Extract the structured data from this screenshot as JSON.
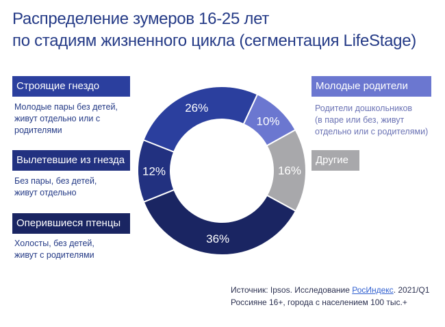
{
  "title_line1": "Распределение зумеров 16-25 лет",
  "title_line2": "по стадиям жизненного цикла (сегментация LifeStage)",
  "segments": {
    "nest_building": {
      "label": "Строящие гнездо",
      "desc_line1": "Молодые пары без детей,",
      "desc_line2": "живут отдельно или с",
      "desc_line3": "родителями"
    },
    "left_nest": {
      "label": "Вылетевшие из гнезда",
      "desc_line1": "Без пары, без детей,",
      "desc_line2": "живут отдельно"
    },
    "fledglings": {
      "label": "Оперившиеся птенцы",
      "desc_line1": "Холосты, без детей,",
      "desc_line2": "живут с родителями"
    },
    "young_parents": {
      "label": "Молодые родители",
      "desc_line1": "Родители дошкольников",
      "desc_line2": "(в паре или без, живут",
      "desc_line3": "отдельно или с родителями)"
    },
    "other": {
      "label": "Другие"
    }
  },
  "source": {
    "prefix": "Источник: Ipsos. Исследование ",
    "link": "РосИндекс",
    "suffix": ". 2021/Q1",
    "line2": "Россияне 16+, города с населением 100 тыс.+"
  },
  "colors": {
    "title": "#243a86",
    "nest_building": "#2b3f9e",
    "left_nest": "#223180",
    "fledglings": "#1a2562",
    "young_parents": "#6b77d0",
    "other": "#a8a8ab"
  },
  "chart_data": {
    "type": "pie",
    "donut": true,
    "categories": [
      "Молодые родители",
      "Другие",
      "Оперившиеся птенцы",
      "Вылетевшие из гнезда",
      "Строящие гнездо"
    ],
    "values": [
      10,
      16,
      36,
      12,
      26
    ],
    "labels": [
      "10%",
      "16%",
      "36%",
      "12%",
      "26%"
    ],
    "unit": "%"
  }
}
